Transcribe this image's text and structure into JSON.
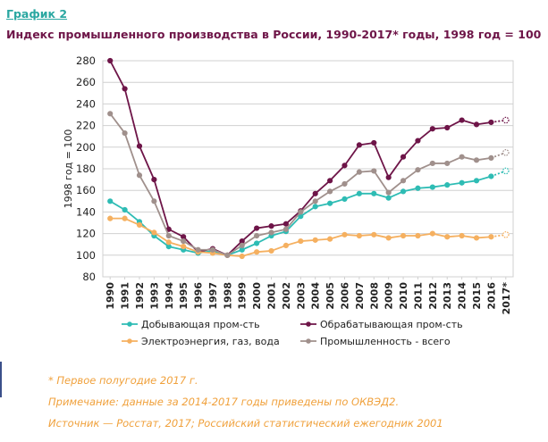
{
  "header": {
    "figure_label": "График 2",
    "title": "Индекс промышленного производства в России, 1990-2017* годы, 1998 год = 100"
  },
  "notes": [
    "* Первое полугодие 2017 г.",
    "Примечание: данные за 2014-2017 годы приведены по ОКВЭД2.",
    "Источник — Росстат, 2017; Российский статистический ежегодник 2001"
  ],
  "colors": {
    "teal": "#2ebcb4",
    "plum": "#6e1548",
    "orange": "#f5b060",
    "gray": "#a0908c",
    "grid": "#d0d0d0",
    "title": "#6e1548",
    "label": "#2aa7a1",
    "notes": "#f0a13c"
  },
  "chart_data": {
    "type": "line",
    "ylabel": "1998 год = 100",
    "ylim": [
      80,
      280
    ],
    "yticks": [
      80,
      100,
      120,
      140,
      160,
      180,
      200,
      220,
      240,
      260,
      280
    ],
    "grid": true,
    "legend_position": "bottom",
    "categories": [
      "1990",
      "1991",
      "1992",
      "1993",
      "1994",
      "1995",
      "1996",
      "1997",
      "1998",
      "1999",
      "2000",
      "2001",
      "2002",
      "2003",
      "2004",
      "2005",
      "2006",
      "2007",
      "2008",
      "2009",
      "2010",
      "2011",
      "2012",
      "2013",
      "2014",
      "2015",
      "2016",
      "2017*"
    ],
    "series": [
      {
        "name": "Добывающая пром-сть",
        "color_key": "teal",
        "values": [
          150,
          142,
          131,
          118,
          108,
          105,
          102,
          104,
          100,
          105,
          111,
          118,
          122,
          136,
          145,
          148,
          152,
          157,
          157,
          153,
          159,
          162,
          163,
          165,
          167,
          169,
          173,
          178
        ],
        "last_point_dotted": true
      },
      {
        "name": "Обрабатывающая пром-сть",
        "color_key": "plum",
        "values": [
          280,
          254,
          201,
          170,
          124,
          117,
          103,
          106,
          100,
          113,
          125,
          127,
          129,
          141,
          157,
          169,
          183,
          202,
          204,
          172,
          191,
          206,
          217,
          218,
          225,
          221,
          223,
          225
        ],
        "last_point_dotted": true
      },
      {
        "name": "Электроэнергия, газ, вода",
        "color_key": "orange",
        "values": [
          134,
          134,
          128,
          121,
          112,
          108,
          103,
          102,
          100,
          99,
          103,
          104,
          109,
          113,
          114,
          115,
          119,
          118,
          119,
          116,
          118,
          118,
          120,
          117,
          118,
          116,
          117,
          119
        ],
        "last_point_dotted": true
      },
      {
        "name": "Промышленность - всего",
        "color_key": "gray",
        "values": [
          231,
          213,
          174,
          150,
          118,
          113,
          105,
          105,
          100,
          109,
          118,
          121,
          124,
          140,
          150,
          159,
          166,
          177,
          178,
          158,
          169,
          179,
          185,
          185,
          191,
          188,
          190,
          195
        ],
        "last_point_dotted": true
      }
    ]
  }
}
